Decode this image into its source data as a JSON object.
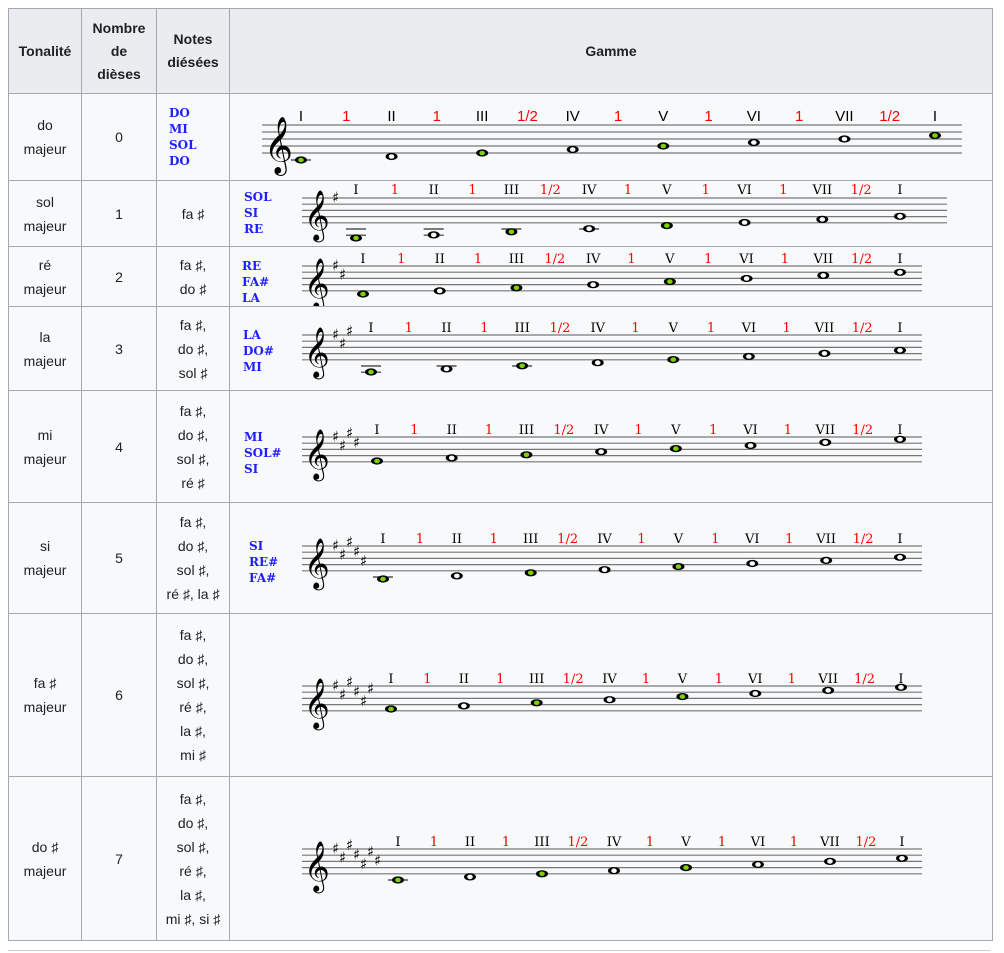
{
  "headers": {
    "tonalite": "Tonalité",
    "nombre": [
      "Nombre",
      "de",
      "dièses"
    ],
    "notes": [
      "Notes",
      "diésées"
    ],
    "gamme": "Gamme"
  },
  "degrees": [
    "I",
    "II",
    "III",
    "IV",
    "V",
    "VI",
    "VII",
    "I"
  ],
  "intervals": [
    "1",
    "1",
    "1/2",
    "1",
    "1",
    "1",
    "1/2"
  ],
  "colors": {
    "interval": "#ff0000",
    "triad_label": "#2020ff",
    "highlight_note": "#7fd000",
    "staff": "#888888"
  },
  "rows": [
    {
      "tonalite": [
        "do",
        "majeur"
      ],
      "nombre": "0",
      "notes": [],
      "triad": [
        "DO",
        "MI",
        "SOL",
        "DO"
      ],
      "sharps": 0,
      "highlighted": [
        0,
        2,
        4,
        7
      ]
    },
    {
      "tonalite": [
        "sol",
        "majeur"
      ],
      "nombre": "1",
      "notes": [
        "fa ♯"
      ],
      "triad": [
        "SOL",
        "SI",
        "RE"
      ],
      "sharps": 1,
      "highlighted": [
        0,
        2,
        4
      ]
    },
    {
      "tonalite": [
        "ré",
        "majeur"
      ],
      "nombre": "2",
      "notes": [
        "fa ♯,",
        "do ♯"
      ],
      "triad": [
        "RE",
        "FA#",
        "LA"
      ],
      "sharps": 2,
      "highlighted": [
        0,
        2,
        4
      ]
    },
    {
      "tonalite": [
        "la",
        "majeur"
      ],
      "nombre": "3",
      "notes": [
        "fa ♯,",
        "do ♯,",
        "sol ♯"
      ],
      "triad": [
        "LA",
        "DO#",
        "MI"
      ],
      "sharps": 3,
      "highlighted": [
        0,
        2,
        4
      ]
    },
    {
      "tonalite": [
        "mi",
        "majeur"
      ],
      "nombre": "4",
      "notes": [
        "fa ♯,",
        "do ♯,",
        "sol ♯,",
        "ré ♯"
      ],
      "triad": [
        "MI",
        "SOL#",
        "SI"
      ],
      "sharps": 4,
      "highlighted": [
        0,
        2,
        4
      ]
    },
    {
      "tonalite": [
        "si",
        "majeur"
      ],
      "nombre": "5",
      "notes": [
        "fa ♯,",
        "do ♯,",
        "sol ♯,",
        "ré ♯, la ♯"
      ],
      "triad": [
        "SI",
        "RE#",
        "FA#"
      ],
      "sharps": 5,
      "highlighted": [
        0,
        2,
        4
      ]
    },
    {
      "tonalite": [
        "fa ♯",
        "majeur"
      ],
      "nombre": "6",
      "notes": [
        "fa ♯,",
        "do ♯,",
        "sol ♯,",
        "ré ♯,",
        "la ♯,",
        "mi ♯"
      ],
      "triad": [],
      "sharps": 6,
      "highlighted": [
        0,
        2,
        4
      ]
    },
    {
      "tonalite": [
        "do ♯",
        "majeur"
      ],
      "nombre": "7",
      "notes": [
        "fa ♯,",
        "do ♯,",
        "sol ♯,",
        "ré ♯,",
        "la ♯,",
        "mi ♯, si ♯"
      ],
      "triad": [],
      "sharps": 7,
      "highlighted": [
        0,
        2,
        4
      ]
    }
  ]
}
